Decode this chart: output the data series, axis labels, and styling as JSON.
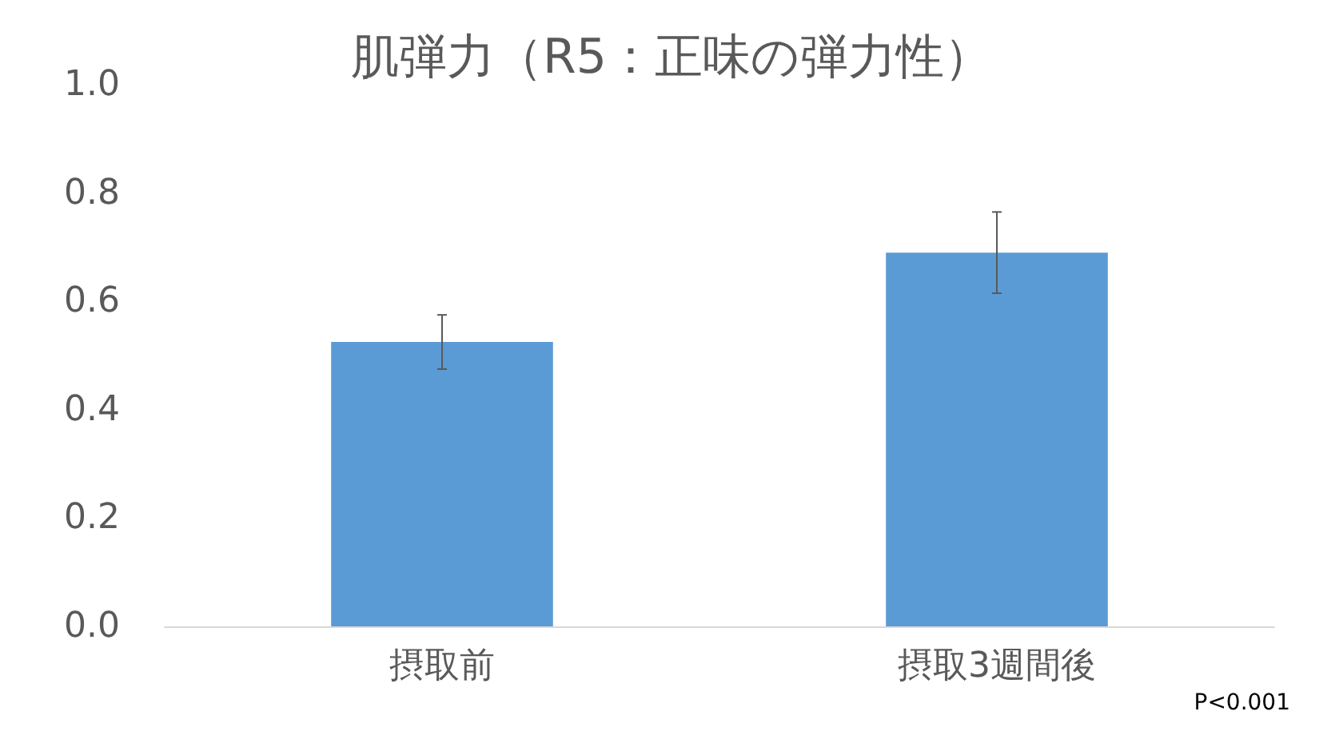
{
  "chart_data": {
    "type": "bar",
    "title": "肌弾力（R5：正味の弾力性）",
    "categories": [
      "摂取前",
      "摂取3週間後"
    ],
    "values": [
      0.525,
      0.69
    ],
    "errors": [
      0.05,
      0.075
    ],
    "color": "#5b9bd5",
    "ylim": [
      0,
      1
    ],
    "yticks": [
      {
        "value": 0,
        "label": "0.0"
      },
      0.2,
      0.4,
      0.6,
      0.8,
      {
        "value": 1,
        "label": "1.0"
      }
    ],
    "grid": false,
    "annotations": [
      "P<0.001"
    ]
  }
}
